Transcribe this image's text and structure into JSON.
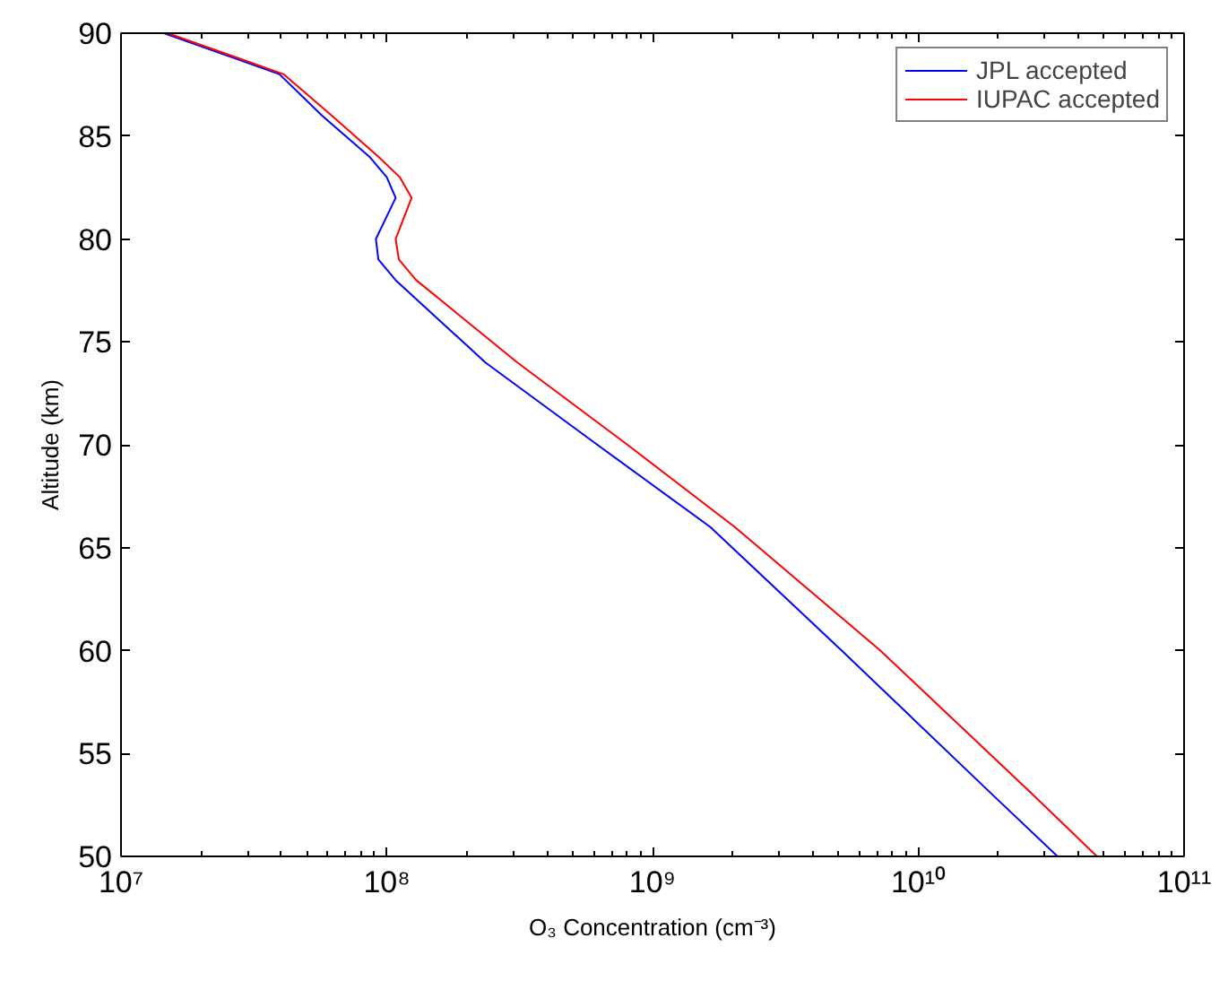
{
  "chart_data": {
    "type": "line",
    "xlabel": "O₃ Concentration (cm⁻³)",
    "ylabel": "Altitude (km)",
    "log": "x",
    "xlim": [
      10000000.0,
      100000000000.0
    ],
    "xticks": [
      {
        "value": 10000000.0,
        "label": "10⁷"
      },
      {
        "value": 100000000.0,
        "label": "10⁸"
      },
      {
        "value": 1000000000.0,
        "label": "10⁹"
      },
      {
        "value": 10000000000.0,
        "label": "10¹⁰"
      },
      {
        "value": 100000000000.0,
        "label": "10¹¹"
      }
    ],
    "ylim": [
      50,
      90
    ],
    "yticks": [
      50,
      55,
      60,
      65,
      70,
      75,
      80,
      85,
      90
    ],
    "grid": false,
    "legend": "top right",
    "line_style": "solid",
    "marker": "none",
    "series": [
      {
        "name": "JPL accepted",
        "color": "#0000ff",
        "x": [
          14500000.0,
          39500000.0,
          57000000.0,
          86000000.0,
          100000000.0,
          108000000.0,
          91000000.0,
          93000000.0,
          108000000.0,
          235000000.0,
          620000000.0,
          1650000000.0,
          5150000000.0,
          19000000000.0,
          33400000000.0
        ],
        "values": [
          90,
          88,
          86,
          84,
          83,
          82,
          80,
          79,
          78,
          74,
          70,
          66,
          60,
          53,
          50
        ]
      },
      {
        "name": "IUPAC accepted",
        "color": "#ff0000",
        "x": [
          15000000.0,
          41000000.0,
          62000000.0,
          93000000.0,
          112000000.0,
          124000000.0,
          108000000.0,
          111000000.0,
          129000000.0,
          310000000.0,
          805000000.0,
          2040000000.0,
          7200000000.0,
          27000000000.0,
          47000000000.0
        ],
        "values": [
          90,
          88,
          86,
          84,
          83,
          82,
          80,
          79,
          78,
          74,
          70,
          66,
          60,
          53,
          50
        ]
      }
    ]
  }
}
